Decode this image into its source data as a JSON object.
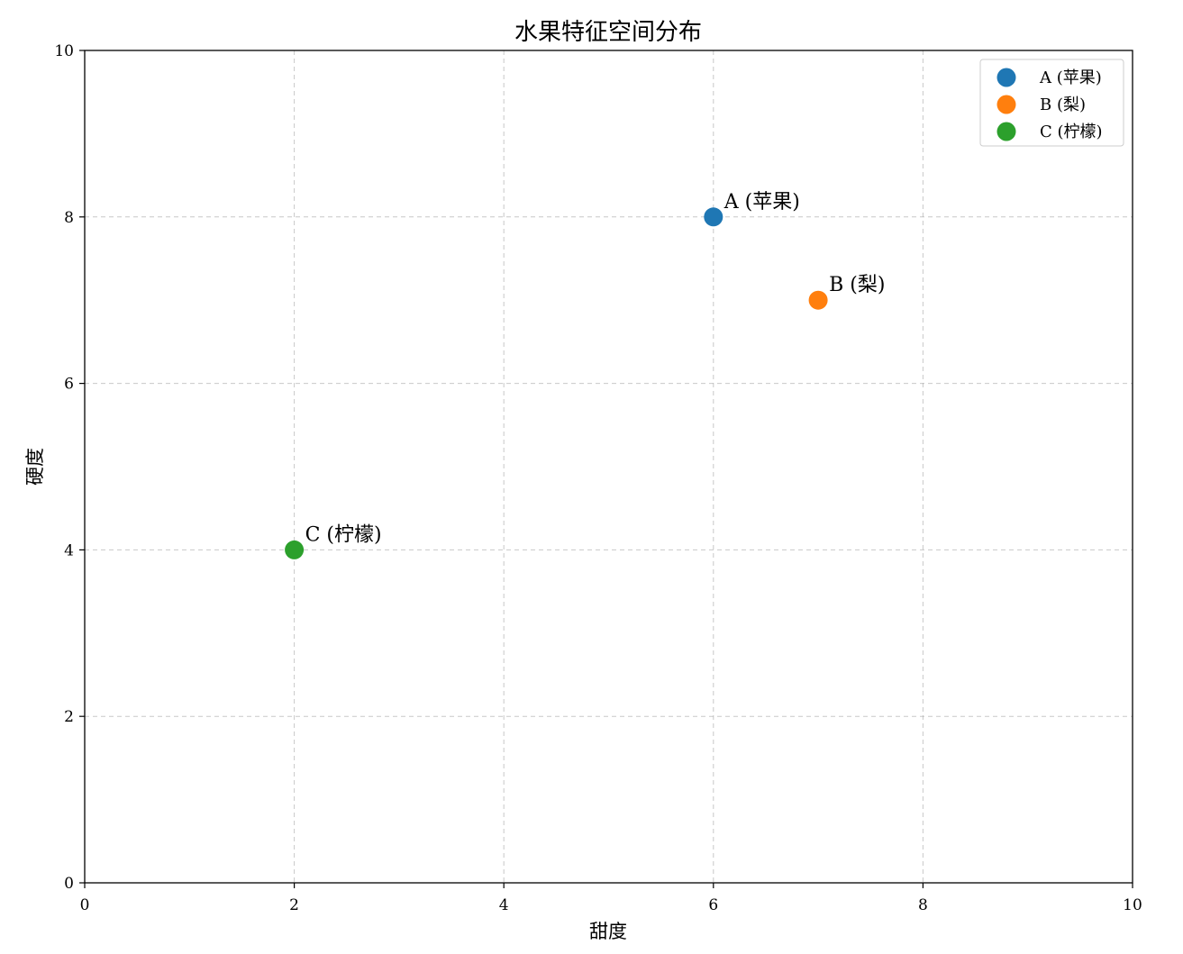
{
  "chart_data": {
    "type": "scatter",
    "title": "水果特征空间分布",
    "xlabel": "甜度",
    "ylabel": "硬度",
    "xlim": [
      0,
      10
    ],
    "ylim": [
      0,
      10
    ],
    "xticks": [
      0,
      2,
      4,
      6,
      8,
      10
    ],
    "yticks": [
      0,
      2,
      4,
      6,
      8,
      10
    ],
    "grid": true,
    "legend_position": "top-right",
    "series": [
      {
        "name": "A (苹果)",
        "color": "#1f77b4",
        "points": [
          {
            "x": 6,
            "y": 8,
            "label": "A (苹果)"
          }
        ]
      },
      {
        "name": "B (梨)",
        "color": "#ff7f0e",
        "points": [
          {
            "x": 7,
            "y": 7,
            "label": "B (梨)"
          }
        ]
      },
      {
        "name": "C (柠檬)",
        "color": "#2ca02c",
        "points": [
          {
            "x": 2,
            "y": 4,
            "label": "C (柠檬)"
          }
        ]
      }
    ]
  }
}
